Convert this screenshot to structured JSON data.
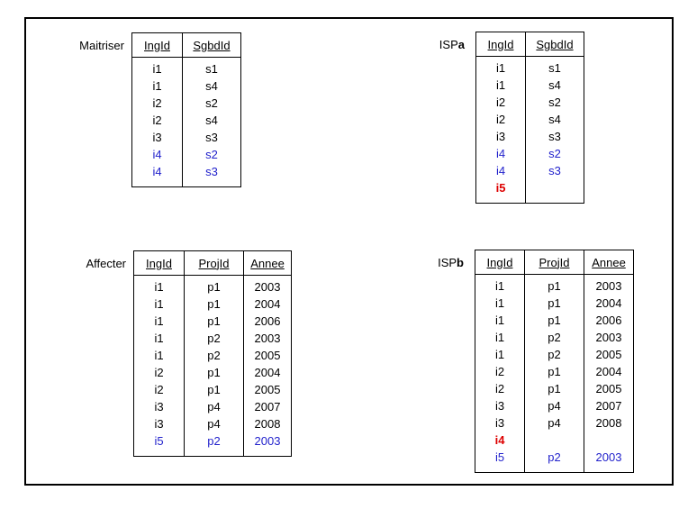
{
  "colors": {
    "text": "#000000",
    "blue": "#2222cc",
    "red": "#dd0000",
    "border": "#000000",
    "background": "#ffffff"
  },
  "tables": [
    {
      "id": "maitriser",
      "label_prefix": "Maitriser",
      "label_suffix": "",
      "columns": [
        "IngId",
        "SgbdId"
      ],
      "rows": [
        {
          "cells": [
            "i1",
            "s1"
          ],
          "color": "black",
          "bold": false
        },
        {
          "cells": [
            "i1",
            "s4"
          ],
          "color": "black",
          "bold": false
        },
        {
          "cells": [
            "i2",
            "s2"
          ],
          "color": "black",
          "bold": false
        },
        {
          "cells": [
            "i2",
            "s4"
          ],
          "color": "black",
          "bold": false
        },
        {
          "cells": [
            "i3",
            "s3"
          ],
          "color": "black",
          "bold": false
        },
        {
          "cells": [
            "i4",
            "s2"
          ],
          "color": "blue",
          "bold": false
        },
        {
          "cells": [
            "i4",
            "s3"
          ],
          "color": "blue",
          "bold": false
        }
      ]
    },
    {
      "id": "ispa",
      "label_prefix": "ISP",
      "label_suffix": "a",
      "columns": [
        "IngId",
        "SgbdId"
      ],
      "rows": [
        {
          "cells": [
            "i1",
            "s1"
          ],
          "color": "black",
          "bold": false
        },
        {
          "cells": [
            "i1",
            "s4"
          ],
          "color": "black",
          "bold": false
        },
        {
          "cells": [
            "i2",
            "s2"
          ],
          "color": "black",
          "bold": false
        },
        {
          "cells": [
            "i2",
            "s4"
          ],
          "color": "black",
          "bold": false
        },
        {
          "cells": [
            "i3",
            "s3"
          ],
          "color": "black",
          "bold": false
        },
        {
          "cells": [
            "i4",
            "s2"
          ],
          "color": "blue",
          "bold": false
        },
        {
          "cells": [
            "i4",
            "s3"
          ],
          "color": "blue",
          "bold": false
        },
        {
          "cells": [
            "i5",
            ""
          ],
          "color": "red",
          "bold": true
        }
      ]
    },
    {
      "id": "affecter",
      "label_prefix": "Affecter",
      "label_suffix": "",
      "columns": [
        "IngId",
        "ProjId",
        "Annee"
      ],
      "rows": [
        {
          "cells": [
            "i1",
            "p1",
            "2003"
          ],
          "color": "black",
          "bold": false
        },
        {
          "cells": [
            "i1",
            "p1",
            "2004"
          ],
          "color": "black",
          "bold": false
        },
        {
          "cells": [
            "i1",
            "p1",
            "2006"
          ],
          "color": "black",
          "bold": false
        },
        {
          "cells": [
            "i1",
            "p2",
            "2003"
          ],
          "color": "black",
          "bold": false
        },
        {
          "cells": [
            "i1",
            "p2",
            "2005"
          ],
          "color": "black",
          "bold": false
        },
        {
          "cells": [
            "i2",
            "p1",
            "2004"
          ],
          "color": "black",
          "bold": false
        },
        {
          "cells": [
            "i2",
            "p1",
            "2005"
          ],
          "color": "black",
          "bold": false
        },
        {
          "cells": [
            "i3",
            "p4",
            "2007"
          ],
          "color": "black",
          "bold": false
        },
        {
          "cells": [
            "i3",
            "p4",
            "2008"
          ],
          "color": "black",
          "bold": false
        },
        {
          "cells": [
            "i5",
            "p2",
            "2003"
          ],
          "color": "blue",
          "bold": false
        }
      ]
    },
    {
      "id": "ispb",
      "label_prefix": "ISP",
      "label_suffix": "b",
      "columns": [
        "IngId",
        "ProjId",
        "Annee"
      ],
      "rows": [
        {
          "cells": [
            "i1",
            "p1",
            "2003"
          ],
          "color": "black",
          "bold": false
        },
        {
          "cells": [
            "i1",
            "p1",
            "2004"
          ],
          "color": "black",
          "bold": false
        },
        {
          "cells": [
            "i1",
            "p1",
            "2006"
          ],
          "color": "black",
          "bold": false
        },
        {
          "cells": [
            "i1",
            "p2",
            "2003"
          ],
          "color": "black",
          "bold": false
        },
        {
          "cells": [
            "i1",
            "p2",
            "2005"
          ],
          "color": "black",
          "bold": false
        },
        {
          "cells": [
            "i2",
            "p1",
            "2004"
          ],
          "color": "black",
          "bold": false
        },
        {
          "cells": [
            "i2",
            "p1",
            "2005"
          ],
          "color": "black",
          "bold": false
        },
        {
          "cells": [
            "i3",
            "p4",
            "2007"
          ],
          "color": "black",
          "bold": false
        },
        {
          "cells": [
            "i3",
            "p4",
            "2008"
          ],
          "color": "black",
          "bold": false
        },
        {
          "cells": [
            "i4",
            "",
            ""
          ],
          "color": "red",
          "bold": true
        },
        {
          "cells": [
            "i5",
            "p2",
            "2003"
          ],
          "color": "blue",
          "bold": false
        }
      ]
    }
  ]
}
